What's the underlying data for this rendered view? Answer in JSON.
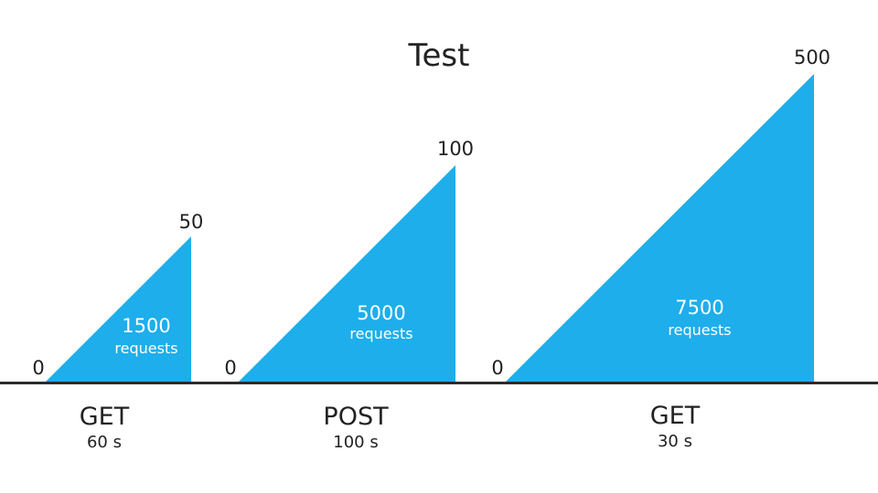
{
  "title": "Test",
  "colors": {
    "ramp": "#1EAEEB",
    "baseline": "#2b2b2b",
    "text": "#222222",
    "inner_text": "#ffffff"
  },
  "stages": [
    {
      "start_value": "0",
      "end_value": "50",
      "total": "1500",
      "unit": "requests",
      "method": "GET",
      "duration": "60 s"
    },
    {
      "start_value": "0",
      "end_value": "100",
      "total": "5000",
      "unit": "requests",
      "method": "POST",
      "duration": "100 s"
    },
    {
      "start_value": "0",
      "end_value": "500",
      "total": "7500",
      "unit": "requests",
      "method": "GET",
      "duration": "30 s"
    }
  ]
}
